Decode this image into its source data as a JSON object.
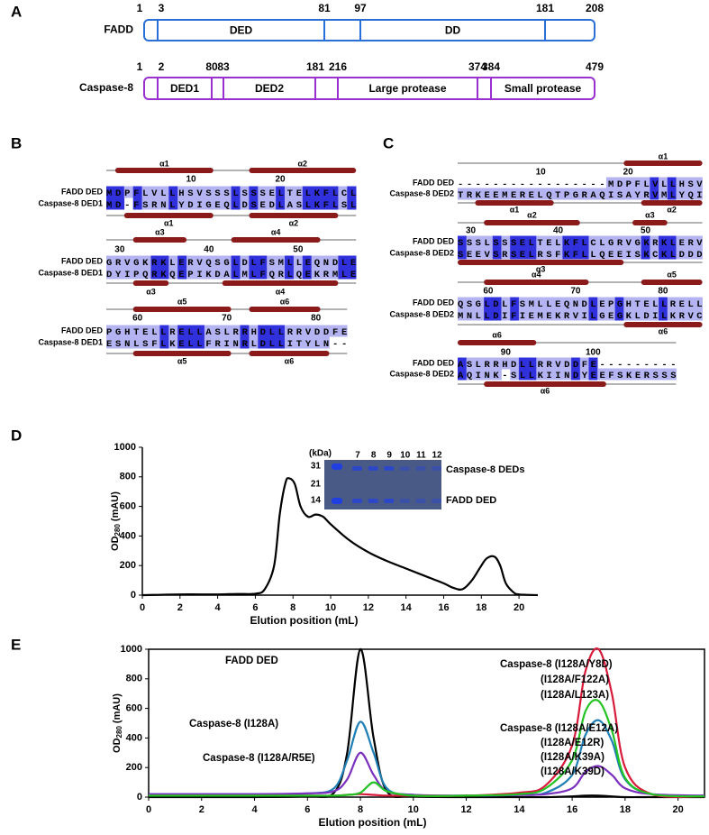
{
  "panel_labels": [
    "A",
    "B",
    "C",
    "D",
    "E"
  ],
  "panel_a": {
    "proteins": [
      {
        "name": "FADD",
        "positions": [
          1,
          3,
          81,
          97,
          181,
          208
        ],
        "domains": [
          "DED",
          "DD"
        ],
        "color": "#2a6fd6"
      },
      {
        "name": "Caspase-8",
        "positions": [
          1,
          2,
          80,
          83,
          181,
          216,
          374,
          384,
          479
        ],
        "domains": [
          "DED1",
          "DED2",
          "Large protease",
          "Small protease"
        ],
        "color": "#9b30d0"
      }
    ]
  },
  "panel_b": {
    "seq1_name": "FADD DED",
    "seq2_name": "Caspase-8 DED1",
    "rows": [
      {
        "numbers": [
          10,
          20
        ],
        "top_helices": [
          "α1",
          "α2"
        ],
        "bottom_helices": [
          "α1",
          "α2"
        ],
        "seq1": "MDPFLVLLHSVSSSLSSSELTELKFLCL",
        "seq2": "MD-FSRNLYDIGEQLDSEDLASLKFLSL"
      },
      {
        "numbers": [
          30,
          40,
          50
        ],
        "top_helices": [
          "α3",
          "α4"
        ],
        "bottom_helices": [
          "α3",
          "α4"
        ],
        "seq1": "GRVGKRKLERVQSGLDLFSMLLEQNDLE",
        "seq2": "DYIPQRKQEPIKDALMLFQRLQEKRMLE"
      },
      {
        "numbers": [
          60,
          70,
          80
        ],
        "top_helices": [
          "α5",
          "α6"
        ],
        "bottom_helices": [
          "α5",
          "α6"
        ],
        "seq1": "PGHTELLRELLASLRRHDLLRRVDDFE",
        "seq2": "ESNLSFLKELLFRINRLDLLITYLN--"
      }
    ]
  },
  "panel_c": {
    "seq1_name": "FADD DED",
    "seq2_name": "Caspase-8 DED2",
    "rows": [
      {
        "numbers": [
          10,
          20
        ],
        "top_helices": [
          "α1"
        ],
        "bottom_helices": [
          "α1",
          "α2"
        ],
        "seq1": "-----------------MDPFLVLLHSV",
        "seq2": "TRKEEMERELQTPGRAQISAYRVMLYQI"
      },
      {
        "numbers": [
          30,
          40,
          50
        ],
        "top_helices": [
          "α2",
          "α3"
        ],
        "bottom_helices": [
          "α3"
        ],
        "seq1": "SSSLSSSELTELKFLCLGRVGKRKLERV",
        "seq2": "SEEVSRSELRSFKFLLQEEISKCKLDDD"
      },
      {
        "numbers": [
          60,
          70,
          80
        ],
        "top_helices": [
          "α4",
          "α5"
        ],
        "bottom_helices": [
          "α6"
        ],
        "seq1": "QSGLDLFSMLLEQNDLEPGHTELLRELL",
        "seq2": "MNLLDIFIEMEKRVILGEGKLDILKRVC"
      },
      {
        "numbers": [
          90,
          100
        ],
        "top_helices": [
          "α6"
        ],
        "bottom_helices": [
          "α6"
        ],
        "seq1": "ASLRRHDLLRRVDDFE---------",
        "seq2": "AQINK-SLLKIINDYEEFSKERSSS"
      }
    ]
  },
  "chart_data": [
    {
      "type": "line",
      "x_label": "Elution position (mL)",
      "y_label": [
        "OD",
        "280",
        "(mAU)"
      ],
      "xlim": [
        0,
        21
      ],
      "ylim": [
        0,
        1000
      ],
      "xticks": [
        0,
        2,
        4,
        6,
        8,
        10,
        12,
        14,
        16,
        18,
        20
      ],
      "yticks": [
        0,
        200,
        400,
        600,
        800,
        1000
      ],
      "frame": false,
      "x": [
        0,
        2,
        4,
        5,
        6,
        6.5,
        7,
        7.3,
        7.6,
        7.8,
        8.1,
        8.4,
        8.8,
        9.2,
        9.6,
        10,
        11,
        12,
        13,
        14,
        15,
        16,
        16.5,
        17,
        17.5,
        18,
        18.3,
        18.7,
        19,
        19.3,
        19.7,
        20,
        21
      ],
      "series": [
        {
          "color": "#000000",
          "values": [
            0,
            5,
            5,
            8,
            10,
            40,
            200,
            550,
            760,
            790,
            750,
            600,
            530,
            545,
            530,
            480,
            370,
            290,
            230,
            180,
            130,
            80,
            50,
            40,
            100,
            200,
            250,
            260,
            200,
            80,
            20,
            5,
            0
          ]
        }
      ],
      "inset": {
        "unit_label": "(kDa)",
        "markers": [
          31,
          21,
          14
        ],
        "lanes": [
          7,
          8,
          9,
          10,
          11,
          12
        ],
        "band_labels": [
          "Caspase-8 DEDs",
          "FADD DED"
        ]
      }
    },
    {
      "type": "line",
      "x_label": "Elution position (mL)",
      "y_label": [
        "OD",
        "280",
        "(mAU)"
      ],
      "xlim": [
        0,
        21
      ],
      "ylim": [
        0,
        1000
      ],
      "xticks": [
        0,
        2,
        4,
        6,
        8,
        10,
        12,
        14,
        16,
        18,
        20
      ],
      "yticks": [
        0,
        200,
        400,
        600,
        800,
        1000
      ],
      "frame": true,
      "x": [
        0,
        2,
        4,
        6,
        7,
        7.5,
        8,
        8.5,
        9,
        10,
        12,
        14,
        15,
        16,
        16.5,
        17,
        17.5,
        18,
        19,
        21
      ],
      "series": [
        {
          "name": "FADD DED",
          "color": "#000000",
          "values": [
            0,
            0,
            0,
            5,
            30,
            300,
            1000,
            400,
            40,
            5,
            0,
            0,
            0,
            5,
            10,
            10,
            5,
            0,
            0,
            0
          ]
        },
        {
          "name": "Caspase-8 (I128A)",
          "color": "#1f7fb5",
          "values": [
            20,
            20,
            20,
            25,
            60,
            250,
            510,
            300,
            60,
            15,
            10,
            15,
            30,
            150,
            420,
            520,
            380,
            120,
            20,
            10
          ]
        },
        {
          "name": "Caspase-8 (I128A/R5E)",
          "color": "#7b2fbf",
          "values": [
            20,
            20,
            20,
            25,
            40,
            120,
            300,
            150,
            40,
            15,
            10,
            15,
            20,
            60,
            170,
            210,
            150,
            60,
            20,
            10
          ]
        },
        {
          "name": "Caspase-8 (I128A/Y8D)",
          "extra_labels": [
            "(I128A/F122A)",
            "(I128A/L123A)"
          ],
          "color": "#d81b3a",
          "values": [
            10,
            10,
            10,
            10,
            10,
            15,
            20,
            15,
            10,
            10,
            10,
            30,
            80,
            350,
            850,
            1000,
            700,
            200,
            20,
            5
          ]
        },
        {
          "name": "Caspase-8 (I128A/E12A)",
          "extra_labels": [
            "(I128A/E12R)",
            "(I128A/K39A)",
            "(I128A/K39D)"
          ],
          "color": "#22c322",
          "values": [
            10,
            10,
            10,
            10,
            10,
            15,
            30,
            100,
            40,
            10,
            10,
            20,
            60,
            250,
            580,
            650,
            450,
            130,
            20,
            5
          ]
        }
      ]
    }
  ]
}
